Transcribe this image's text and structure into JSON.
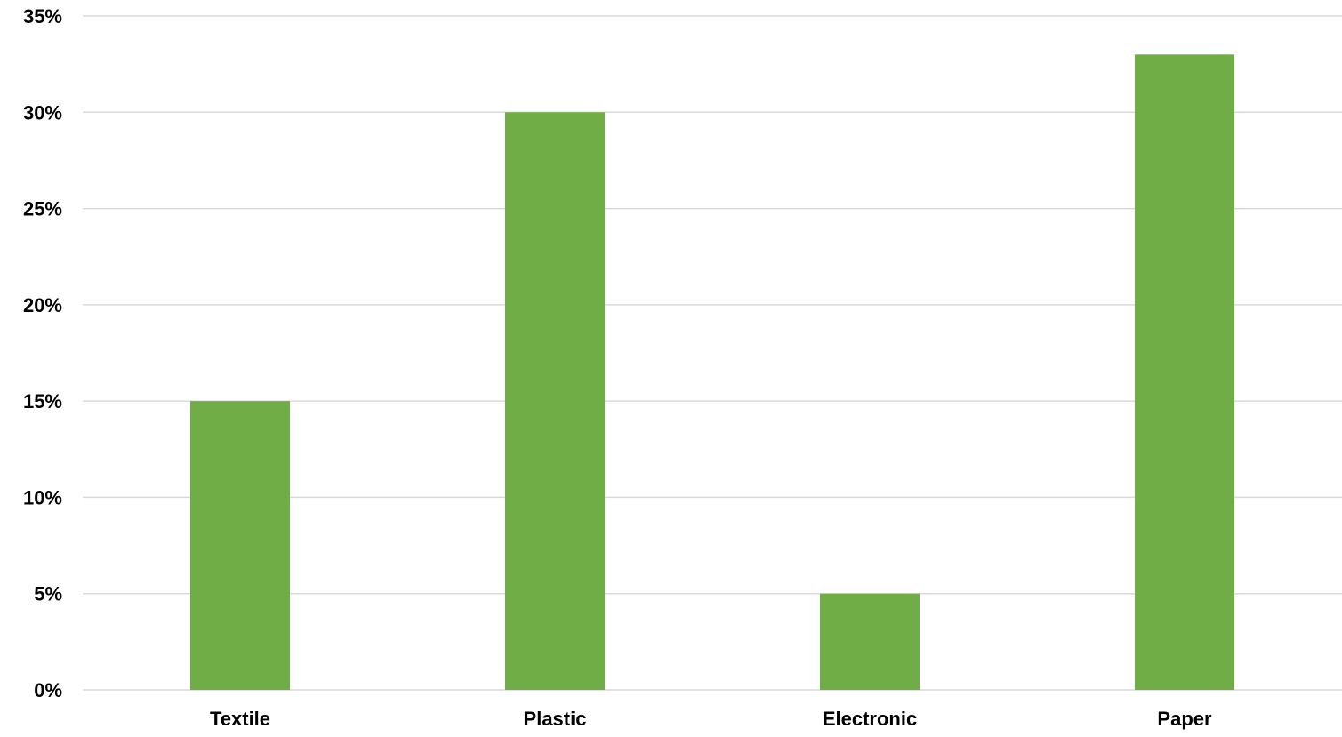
{
  "chart_data": {
    "type": "bar",
    "categories": [
      "Textile",
      "Plastic",
      "Electronic",
      "Paper"
    ],
    "values": [
      15,
      30,
      5,
      33
    ],
    "ylim": [
      0,
      35
    ],
    "yticks": [
      "0%",
      "5%",
      "10%",
      "15%",
      "20%",
      "25%",
      "30%",
      "35%"
    ],
    "title": "",
    "xlabel": "",
    "ylabel": "",
    "grid": true,
    "legend": "none",
    "bar_color": "#70ad47",
    "grid_color": "#d9d9d9"
  }
}
